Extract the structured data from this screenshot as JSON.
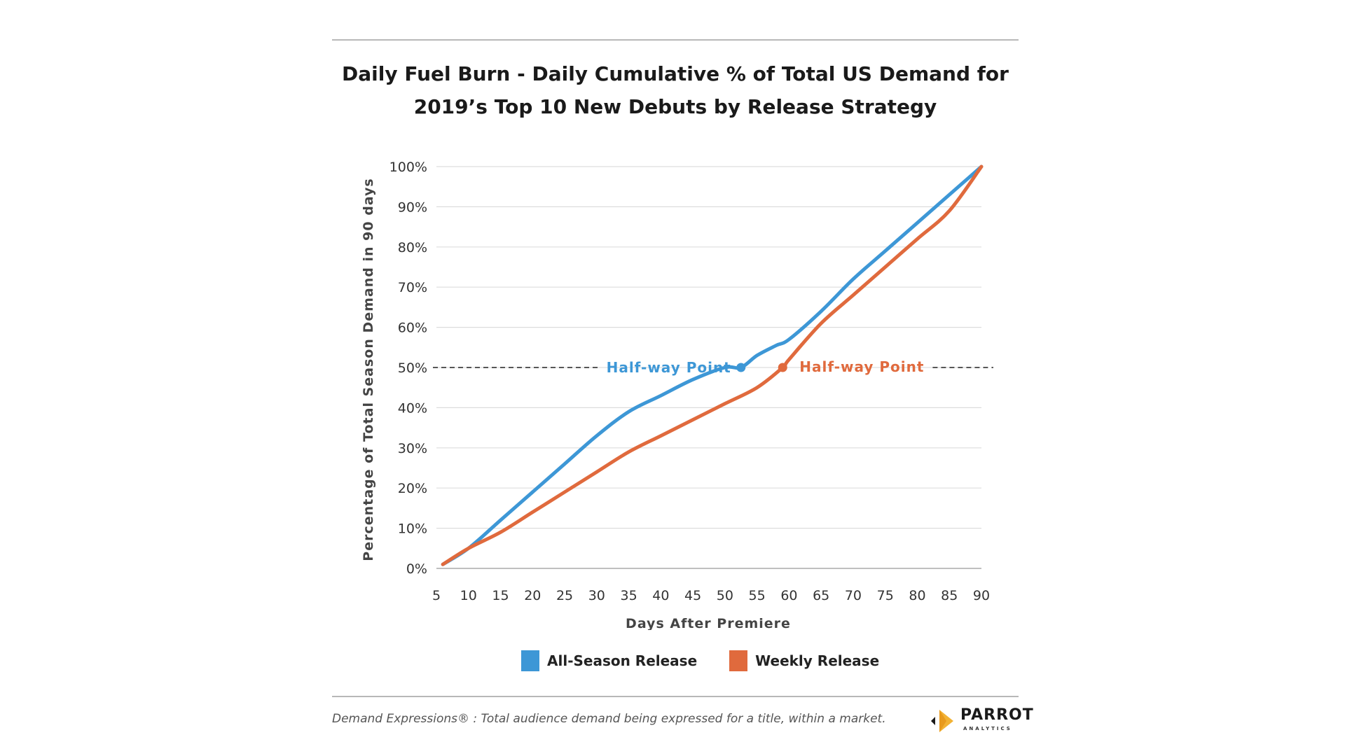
{
  "chart_data": {
    "type": "line",
    "title_line1": "Daily Fuel Burn - Daily Cumulative % of Total US Demand  for",
    "title_line2": "2019’s Top 10 New Debuts by Release Strategy",
    "xlabel": "Days After Premiere",
    "ylabel": "Percentage of Total Season Demand in 90 days",
    "xlim": [
      5,
      90
    ],
    "ylim": [
      0,
      100
    ],
    "x_ticks": [
      "5",
      "10",
      "15",
      "20",
      "25",
      "30",
      "35",
      "40",
      "45",
      "50",
      "55",
      "60",
      "65",
      "70",
      "75",
      "80",
      "85",
      "90"
    ],
    "y_ticks": [
      "0%",
      "10%",
      "20%",
      "30%",
      "40%",
      "50%",
      "60%",
      "70%",
      "80%",
      "90%",
      "100%"
    ],
    "grid": "horizontal",
    "legend_position": "bottom",
    "series": [
      {
        "name": "All-Season Release",
        "color": "#3d97d6",
        "points": [
          [
            6,
            1
          ],
          [
            10,
            5
          ],
          [
            15,
            12
          ],
          [
            20,
            19
          ],
          [
            25,
            26
          ],
          [
            30,
            33
          ],
          [
            35,
            39
          ],
          [
            40,
            43
          ],
          [
            45,
            47
          ],
          [
            50,
            50
          ],
          [
            52.5,
            50
          ],
          [
            55,
            53
          ],
          [
            58,
            55.5
          ],
          [
            60,
            57
          ],
          [
            65,
            64
          ],
          [
            70,
            72
          ],
          [
            75,
            79
          ],
          [
            80,
            86
          ],
          [
            85,
            93
          ],
          [
            90,
            100
          ]
        ]
      },
      {
        "name": "Weekly Release",
        "color": "#e06a3d",
        "points": [
          [
            6,
            1
          ],
          [
            10,
            5
          ],
          [
            15,
            9
          ],
          [
            20,
            14
          ],
          [
            25,
            19
          ],
          [
            30,
            24
          ],
          [
            35,
            29
          ],
          [
            40,
            33
          ],
          [
            45,
            37
          ],
          [
            50,
            41
          ],
          [
            55,
            45
          ],
          [
            59,
            50
          ],
          [
            60,
            52
          ],
          [
            65,
            61
          ],
          [
            70,
            68
          ],
          [
            75,
            75
          ],
          [
            80,
            82
          ],
          [
            85,
            89
          ],
          [
            90,
            100
          ]
        ]
      }
    ],
    "annotations": [
      {
        "text": "Half-way Point",
        "series": "All-Season Release",
        "x": 52.5,
        "y": 50,
        "color": "#3d97d6"
      },
      {
        "text": "Half-way Point",
        "series": "Weekly Release",
        "x": 59,
        "y": 50,
        "color": "#e06a3d"
      }
    ],
    "reference_line": {
      "y": 50,
      "style": "dashed"
    }
  },
  "legend": {
    "items": [
      {
        "label": "All-Season Release",
        "color": "#3d97d6"
      },
      {
        "label": "Weekly Release",
        "color": "#e06a3d"
      }
    ]
  },
  "footnote": "Demand Expressions® :  Total audience demand being expressed for a title, within a market.",
  "logo": {
    "name": "PARROT",
    "sub": "ANALYTICS"
  }
}
